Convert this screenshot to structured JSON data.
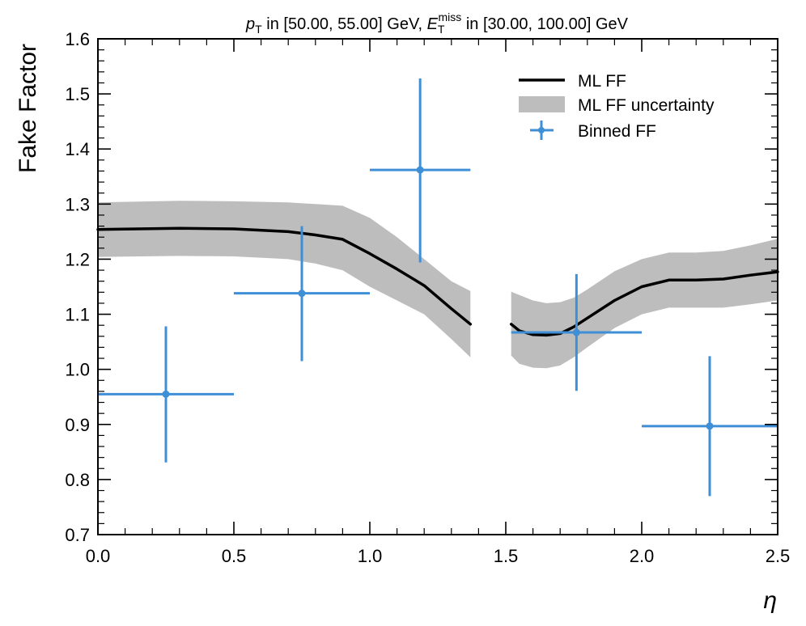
{
  "chart_data": {
    "type": "line",
    "title": {
      "pt_symbol": "p",
      "pt_sub": "T",
      "part1": " in [50.00, 55.00] GeV, ",
      "et_symbol": "E",
      "et_sub": "T",
      "et_sup": "miss",
      "part2": " in [30.00, 100.00] GeV"
    },
    "xlabel": "η",
    "ylabel": "Fake Factor",
    "xlim": [
      0.0,
      2.5
    ],
    "ylim": [
      0.7,
      1.6
    ],
    "x_ticks": [
      "0.0",
      "0.5",
      "1.0",
      "1.5",
      "2.0",
      "2.5"
    ],
    "y_ticks": [
      "0.7",
      "0.8",
      "0.9",
      "1.0",
      "1.1",
      "1.2",
      "1.3",
      "1.4",
      "1.5",
      "1.6"
    ],
    "grid": false,
    "legend_position": "top-right",
    "series": [
      {
        "name": "ML FF",
        "kind": "line",
        "color": "#000000",
        "segments": [
          {
            "x": [
              0.0,
              0.3,
              0.5,
              0.7,
              0.8,
              0.9,
              1.0,
              1.1,
              1.2,
              1.3,
              1.37
            ],
            "y": [
              1.254,
              1.256,
              1.255,
              1.25,
              1.244,
              1.236,
              1.21,
              1.182,
              1.152,
              1.11,
              1.082
            ]
          },
          {
            "x": [
              1.52,
              1.55,
              1.6,
              1.65,
              1.7,
              1.75,
              1.8,
              1.9,
              2.0,
              2.1,
              2.2,
              2.3,
              2.4,
              2.5
            ],
            "y": [
              1.082,
              1.07,
              1.063,
              1.062,
              1.065,
              1.077,
              1.093,
              1.125,
              1.15,
              1.162,
              1.162,
              1.164,
              1.171,
              1.177
            ]
          }
        ]
      },
      {
        "name": "ML FF uncertainty",
        "kind": "band",
        "color": "#bdbdbd",
        "segments": [
          {
            "x": [
              0.0,
              0.3,
              0.5,
              0.7,
              0.8,
              0.9,
              1.0,
              1.1,
              1.2,
              1.3,
              1.37
            ],
            "upper": [
              1.303,
              1.306,
              1.305,
              1.303,
              1.3,
              1.297,
              1.275,
              1.24,
              1.2,
              1.16,
              1.142
            ],
            "lower": [
              1.204,
              1.206,
              1.205,
              1.2,
              1.192,
              1.18,
              1.15,
              1.125,
              1.1,
              1.055,
              1.022
            ]
          },
          {
            "x": [
              1.52,
              1.55,
              1.6,
              1.65,
              1.7,
              1.75,
              1.8,
              1.9,
              2.0,
              2.1,
              2.2,
              2.3,
              2.4,
              2.5
            ],
            "upper": [
              1.141,
              1.135,
              1.125,
              1.12,
              1.122,
              1.13,
              1.145,
              1.178,
              1.2,
              1.212,
              1.212,
              1.215,
              1.225,
              1.237
            ],
            "lower": [
              1.025,
              1.01,
              1.003,
              1.002,
              1.007,
              1.022,
              1.04,
              1.075,
              1.1,
              1.112,
              1.112,
              1.112,
              1.118,
              1.125
            ]
          }
        ]
      },
      {
        "name": "Binned FF",
        "kind": "errorbar",
        "color": "#3f8fd6",
        "points": [
          {
            "x": 0.25,
            "y": 0.955,
            "xerr": [
              0.25,
              0.25
            ],
            "yerr": [
              0.124,
              0.123
            ]
          },
          {
            "x": 0.75,
            "y": 1.138,
            "xerr": [
              0.25,
              0.25
            ],
            "yerr": [
              0.123,
              0.122
            ]
          },
          {
            "x": 1.185,
            "y": 1.362,
            "xerr": [
              0.185,
              0.185
            ],
            "yerr": [
              0.168,
              0.166
            ]
          },
          {
            "x": 1.76,
            "y": 1.067,
            "xerr": [
              0.24,
              0.24
            ],
            "yerr": [
              0.106,
              0.106
            ]
          },
          {
            "x": 2.25,
            "y": 0.897,
            "xerr": [
              0.25,
              0.25
            ],
            "yerr": [
              0.127,
              0.127
            ]
          }
        ]
      }
    ]
  }
}
